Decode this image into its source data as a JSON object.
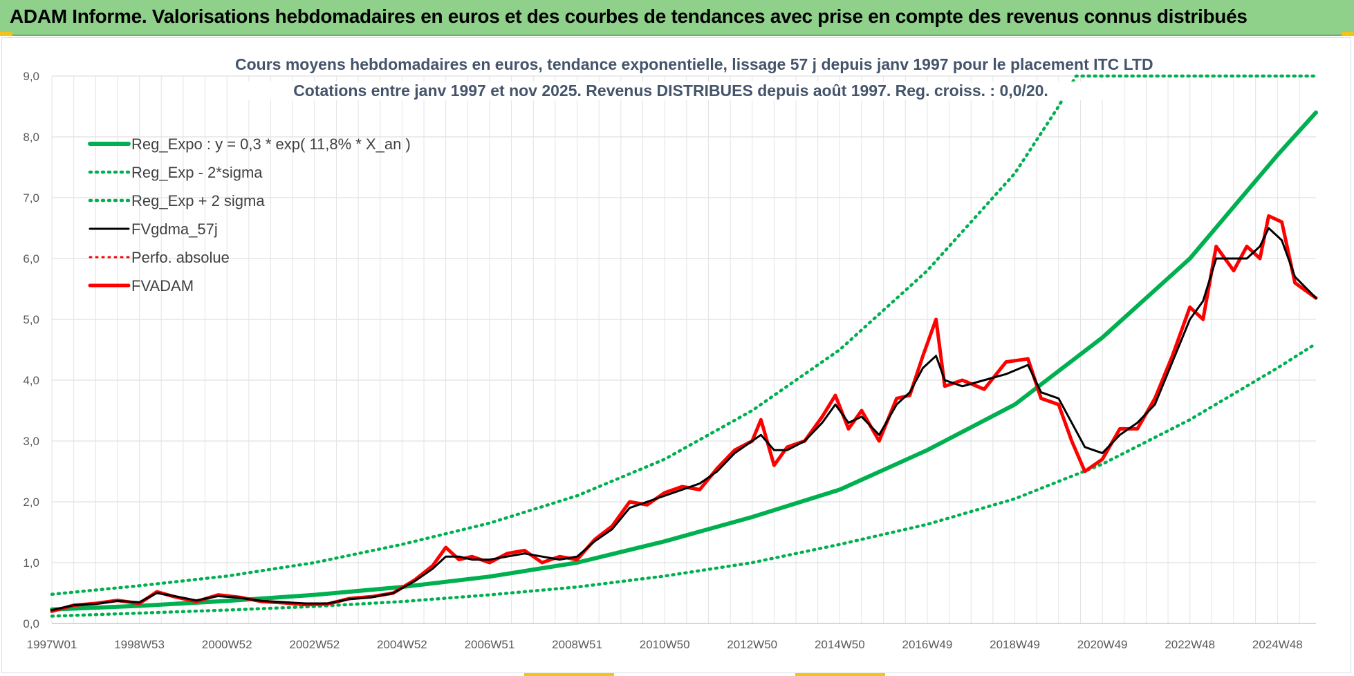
{
  "header": {
    "title": "ADAM Informe. Valorisations hebdomadaires en euros et des courbes de tendances avec prise en compte des revenus connus distribués"
  },
  "chart_data": {
    "type": "line",
    "title": "Cours moyens hebdomadaires en euros, tendance exponentielle, lissage 57 j depuis janv 1997 pour le placement ITC LTD",
    "subtitle": "Cotations entre janv 1997 et nov 2025. Revenus DISTRIBUES depuis août 1997. Reg. croiss. : 0,0/20.",
    "xlabel": "",
    "ylabel": "",
    "x_range": [
      1997.0,
      2025.88
    ],
    "ylim": [
      0,
      9
    ],
    "yticks": [
      "0,0",
      "1,0",
      "2,0",
      "3,0",
      "4,0",
      "5,0",
      "6,0",
      "7,0",
      "8,0",
      "9,0"
    ],
    "xticks": [
      {
        "label": "1997W01",
        "x": 1997.0
      },
      {
        "label": "1998W53",
        "x": 1999.0
      },
      {
        "label": "2000W52",
        "x": 2001.0
      },
      {
        "label": "2002W52",
        "x": 2003.0
      },
      {
        "label": "2004W52",
        "x": 2005.0
      },
      {
        "label": "2006W51",
        "x": 2007.0
      },
      {
        "label": "2008W51",
        "x": 2009.0
      },
      {
        "label": "2010W50",
        "x": 2011.0
      },
      {
        "label": "2012W50",
        "x": 2013.0
      },
      {
        "label": "2014W50",
        "x": 2015.0
      },
      {
        "label": "2016W49",
        "x": 2017.0
      },
      {
        "label": "2018W49",
        "x": 2019.0
      },
      {
        "label": "2020W49",
        "x": 2021.0
      },
      {
        "label": "2022W48",
        "x": 2023.0
      },
      {
        "label": "2024W48",
        "x": 2025.0
      }
    ],
    "grid": true,
    "legend_position": "top-left",
    "series": [
      {
        "name": "Reg_Expo : y = 0,3 * exp( 11,8% * X_an )",
        "color": "#00b050",
        "style": "solid",
        "x": [
          1997.0,
          1999.0,
          2001.0,
          2003.0,
          2005.0,
          2007.0,
          2009.0,
          2011.0,
          2013.0,
          2015.0,
          2017.0,
          2019.0,
          2021.0,
          2023.0,
          2025.0,
          2025.88
        ],
        "y": [
          0.23,
          0.29,
          0.37,
          0.47,
          0.6,
          0.77,
          1.0,
          1.35,
          1.75,
          2.2,
          2.85,
          3.6,
          4.7,
          6.0,
          7.7,
          8.4
        ]
      },
      {
        "name": "Reg_Exp - 2*sigma",
        "color": "#00b050",
        "style": "dotted",
        "x": [
          1997.0,
          1999.0,
          2001.0,
          2003.0,
          2005.0,
          2007.0,
          2009.0,
          2011.0,
          2013.0,
          2015.0,
          2017.0,
          2019.0,
          2021.0,
          2023.0,
          2025.0,
          2025.88
        ],
        "y": [
          0.12,
          0.17,
          0.22,
          0.28,
          0.36,
          0.47,
          0.6,
          0.78,
          1.0,
          1.3,
          1.63,
          2.05,
          2.62,
          3.35,
          4.2,
          4.6
        ]
      },
      {
        "name": "Reg_Exp + 2 sigma",
        "color": "#00b050",
        "style": "dotted",
        "x": [
          1997.0,
          1999.0,
          2001.0,
          2003.0,
          2005.0,
          2007.0,
          2009.0,
          2011.0,
          2013.0,
          2015.0,
          2017.0,
          2019.0,
          2020.0,
          2020.4,
          2025.88
        ],
        "y": [
          0.48,
          0.62,
          0.78,
          1.0,
          1.3,
          1.65,
          2.1,
          2.7,
          3.5,
          4.5,
          5.8,
          7.4,
          8.5,
          9.0,
          9.0
        ]
      },
      {
        "name": "FVgdma_57j",
        "color": "#000000",
        "style": "solid",
        "x": [
          1997.0,
          1997.5,
          1998.0,
          1998.5,
          1999.0,
          1999.4,
          1999.8,
          2000.3,
          2000.8,
          2001.3,
          2001.8,
          2002.3,
          2002.8,
          2003.3,
          2003.8,
          2004.3,
          2004.8,
          2005.3,
          2005.7,
          2006.0,
          2006.3,
          2006.6,
          2007.0,
          2007.4,
          2007.8,
          2008.2,
          2008.6,
          2009.0,
          2009.4,
          2009.8,
          2010.2,
          2010.6,
          2011.0,
          2011.4,
          2011.8,
          2012.2,
          2012.6,
          2013.0,
          2013.2,
          2013.5,
          2013.8,
          2014.2,
          2014.6,
          2014.9,
          2015.2,
          2015.5,
          2015.9,
          2016.3,
          2016.6,
          2016.9,
          2017.2,
          2017.4,
          2017.8,
          2018.3,
          2018.8,
          2019.3,
          2019.6,
          2020.0,
          2020.3,
          2020.6,
          2021.0,
          2021.4,
          2021.8,
          2022.2,
          2022.6,
          2023.0,
          2023.3,
          2023.6,
          2024.0,
          2024.3,
          2024.6,
          2024.8,
          2025.1,
          2025.4,
          2025.88
        ],
        "y": [
          0.22,
          0.3,
          0.32,
          0.37,
          0.35,
          0.5,
          0.45,
          0.38,
          0.45,
          0.42,
          0.37,
          0.35,
          0.33,
          0.33,
          0.4,
          0.43,
          0.5,
          0.7,
          0.9,
          1.1,
          1.1,
          1.05,
          1.05,
          1.1,
          1.15,
          1.1,
          1.05,
          1.1,
          1.35,
          1.55,
          1.9,
          2.0,
          2.1,
          2.2,
          2.3,
          2.5,
          2.8,
          3.0,
          3.1,
          2.85,
          2.85,
          3.0,
          3.3,
          3.6,
          3.3,
          3.4,
          3.1,
          3.6,
          3.8,
          4.2,
          4.4,
          4.0,
          3.9,
          4.0,
          4.1,
          4.25,
          3.8,
          3.7,
          3.3,
          2.9,
          2.8,
          3.1,
          3.3,
          3.6,
          4.3,
          5.0,
          5.3,
          6.0,
          6.0,
          6.0,
          6.2,
          6.5,
          6.3,
          5.7,
          5.35
        ]
      },
      {
        "name": "Perfo. absolue",
        "color": "#ff0000",
        "style": "dotted",
        "x": [
          1997.0,
          1997.5,
          1998.0,
          1998.5,
          1999.0,
          1999.4,
          1999.8,
          2000.3,
          2000.8,
          2001.3,
          2001.8,
          2002.3,
          2002.8,
          2003.3,
          2003.8,
          2004.3,
          2004.8,
          2005.3,
          2005.7,
          2006.0,
          2006.3,
          2006.6,
          2007.0,
          2007.4,
          2007.8,
          2008.2,
          2008.6,
          2009.0,
          2009.4,
          2009.8,
          2010.2,
          2010.6,
          2011.0,
          2011.4,
          2011.8,
          2012.2,
          2012.6,
          2013.0,
          2013.2,
          2013.5,
          2013.8,
          2014.2,
          2014.6,
          2014.9,
          2015.2,
          2015.5,
          2015.9,
          2016.3,
          2016.6,
          2016.9,
          2017.2,
          2017.4,
          2017.8,
          2018.3,
          2018.8,
          2019.3,
          2019.6,
          2020.0,
          2020.3,
          2020.6,
          2021.0,
          2021.4,
          2021.8,
          2022.2,
          2022.6,
          2023.0,
          2023.3,
          2023.6,
          2024.0,
          2024.3,
          2024.6,
          2024.8,
          2025.1,
          2025.4,
          2025.88
        ],
        "y": [
          0.2,
          0.3,
          0.33,
          0.38,
          0.33,
          0.52,
          0.44,
          0.36,
          0.47,
          0.43,
          0.36,
          0.34,
          0.31,
          0.32,
          0.41,
          0.44,
          0.5,
          0.72,
          0.95,
          1.25,
          1.05,
          1.1,
          1.0,
          1.15,
          1.2,
          1.0,
          1.1,
          1.05,
          1.38,
          1.6,
          2.0,
          1.95,
          2.15,
          2.25,
          2.2,
          2.55,
          2.85,
          3.0,
          3.35,
          2.6,
          2.9,
          3.0,
          3.4,
          3.75,
          3.2,
          3.5,
          3.0,
          3.7,
          3.75,
          4.4,
          5.0,
          3.9,
          4.0,
          3.85,
          4.3,
          4.35,
          3.7,
          3.6,
          3.0,
          2.5,
          2.7,
          3.2,
          3.2,
          3.7,
          4.4,
          5.2,
          5.0,
          6.2,
          5.8,
          6.2,
          6.0,
          6.7,
          6.6,
          5.6,
          5.35
        ]
      },
      {
        "name": "FVADAM",
        "color": "#ff0000",
        "style": "solid",
        "x": [
          1997.0,
          1997.5,
          1998.0,
          1998.5,
          1999.0,
          1999.4,
          1999.8,
          2000.3,
          2000.8,
          2001.3,
          2001.8,
          2002.3,
          2002.8,
          2003.3,
          2003.8,
          2004.3,
          2004.8,
          2005.3,
          2005.7,
          2006.0,
          2006.3,
          2006.6,
          2007.0,
          2007.4,
          2007.8,
          2008.2,
          2008.6,
          2009.0,
          2009.4,
          2009.8,
          2010.2,
          2010.6,
          2011.0,
          2011.4,
          2011.8,
          2012.2,
          2012.6,
          2013.0,
          2013.2,
          2013.5,
          2013.8,
          2014.2,
          2014.6,
          2014.9,
          2015.2,
          2015.5,
          2015.9,
          2016.3,
          2016.6,
          2016.9,
          2017.2,
          2017.4,
          2017.8,
          2018.3,
          2018.8,
          2019.3,
          2019.6,
          2020.0,
          2020.3,
          2020.6,
          2021.0,
          2021.4,
          2021.8,
          2022.2,
          2022.6,
          2023.0,
          2023.3,
          2023.6,
          2024.0,
          2024.3,
          2024.6,
          2024.8,
          2025.1,
          2025.4,
          2025.88
        ],
        "y": [
          0.2,
          0.3,
          0.33,
          0.38,
          0.33,
          0.52,
          0.44,
          0.36,
          0.47,
          0.43,
          0.36,
          0.34,
          0.31,
          0.32,
          0.41,
          0.44,
          0.5,
          0.72,
          0.95,
          1.25,
          1.05,
          1.1,
          1.0,
          1.15,
          1.2,
          1.0,
          1.1,
          1.05,
          1.38,
          1.6,
          2.0,
          1.95,
          2.15,
          2.25,
          2.2,
          2.55,
          2.85,
          3.0,
          3.35,
          2.6,
          2.9,
          3.0,
          3.4,
          3.75,
          3.2,
          3.5,
          3.0,
          3.7,
          3.75,
          4.4,
          5.0,
          3.9,
          4.0,
          3.85,
          4.3,
          4.35,
          3.7,
          3.6,
          3.0,
          2.5,
          2.7,
          3.2,
          3.2,
          3.7,
          4.4,
          5.2,
          5.0,
          6.2,
          5.8,
          6.2,
          6.0,
          6.7,
          6.6,
          5.6,
          5.35
        ]
      }
    ]
  }
}
